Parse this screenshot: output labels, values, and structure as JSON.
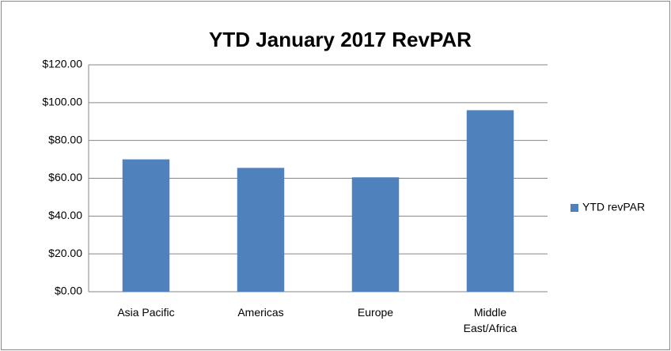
{
  "chart_data": {
    "type": "bar",
    "title": "YTD January 2017 RevPAR",
    "categories": [
      "Asia Pacific",
      "Americas",
      "Europe",
      "Middle East/Africa"
    ],
    "series": [
      {
        "name": "YTD revPAR",
        "color": "#4f81bd",
        "values": [
          70,
          65.5,
          60.5,
          96
        ]
      }
    ],
    "ylim": [
      0,
      120
    ],
    "yticks": [
      {
        "value": 0,
        "label": "$0.00"
      },
      {
        "value": 20,
        "label": "$20.00"
      },
      {
        "value": 40,
        "label": "$40.00"
      },
      {
        "value": 60,
        "label": "$60.00"
      },
      {
        "value": 80,
        "label": "$80.00"
      },
      {
        "value": 100,
        "label": "$100.00"
      },
      {
        "value": 120,
        "label": "$120.00"
      }
    ],
    "grid": true,
    "legend": "right"
  }
}
